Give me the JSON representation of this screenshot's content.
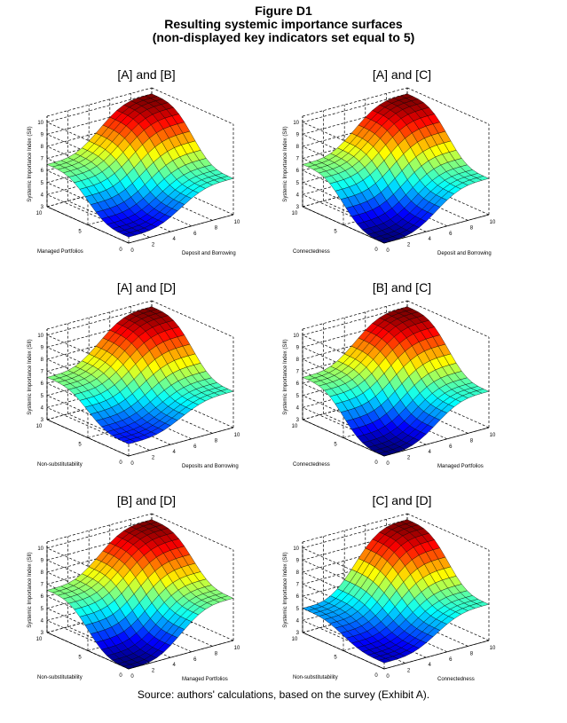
{
  "figure": {
    "title": "Figure D1",
    "subtitle_1": "Resulting systemic importance surfaces",
    "subtitle_2": "(non-displayed key indicators set equal to 5)",
    "source": "Source: authors' calculations, based on the survey (Exhibit A)."
  },
  "colormap": "jet",
  "chart_data": [
    {
      "type": "surface",
      "title": "[A] and [B]",
      "xlabel": "Deposit and Borrowing",
      "ylabel": "Managed Portfolios",
      "zlabel": "Systemic Importance Index (SII)",
      "xlim": [
        0,
        10
      ],
      "ylim": [
        0,
        10
      ],
      "zlim": [
        3,
        10
      ],
      "xticks": [
        "0",
        "2",
        "4",
        "6",
        "8",
        "10"
      ],
      "yticks": [
        "0",
        "5",
        "10"
      ],
      "zticks": [
        "3",
        "4",
        "5",
        "6",
        "7",
        "8",
        "9",
        "10"
      ],
      "corner_values": {
        "x0_y0": 3.5,
        "x10_y0": 6,
        "x0_y10": 6.5,
        "x10_y10": 10
      },
      "grid": true
    },
    {
      "type": "surface",
      "title": "[A] and [C]",
      "xlabel": "Deposit and Borrowing",
      "ylabel": "Connectedness",
      "zlabel": "Systemic Importance Index (SII)",
      "xlim": [
        0,
        10
      ],
      "ylim": [
        0,
        10
      ],
      "zlim": [
        3,
        10
      ],
      "xticks": [
        "0",
        "2",
        "4",
        "6",
        "8",
        "10"
      ],
      "yticks": [
        "0",
        "5",
        "10"
      ],
      "zticks": [
        "3",
        "4",
        "5",
        "6",
        "7",
        "8",
        "9",
        "10"
      ],
      "corner_values": {
        "x0_y0": 3,
        "x10_y0": 6,
        "x0_y10": 6.5,
        "x10_y10": 10
      },
      "grid": true
    },
    {
      "type": "surface",
      "title": "[A] and [D]",
      "xlabel": "Deposits and Borrowing",
      "ylabel": "Non-substitutability",
      "zlabel": "Systemic Importance Index (SII)",
      "xlim": [
        0,
        10
      ],
      "ylim": [
        0,
        10
      ],
      "zlim": [
        3,
        10
      ],
      "xticks": [
        "0",
        "2",
        "4",
        "6",
        "8",
        "10"
      ],
      "yticks": [
        "0",
        "5",
        "10"
      ],
      "zticks": [
        "3",
        "4",
        "5",
        "6",
        "7",
        "8",
        "9",
        "10"
      ],
      "corner_values": {
        "x0_y0": 4,
        "x10_y0": 6,
        "x0_y10": 6.5,
        "x10_y10": 10
      },
      "grid": true
    },
    {
      "type": "surface",
      "title": "[B] and [C]",
      "xlabel": "Managed Portfolios",
      "ylabel": "Connectedness",
      "zlabel": "Systemic Importance Index (SII)",
      "xlim": [
        0,
        10
      ],
      "ylim": [
        0,
        10
      ],
      "zlim": [
        3,
        10
      ],
      "xticks": [
        "0",
        "2",
        "4",
        "6",
        "8",
        "10"
      ],
      "yticks": [
        "0",
        "5",
        "10"
      ],
      "zticks": [
        "3",
        "4",
        "5",
        "6",
        "7",
        "8",
        "9",
        "10"
      ],
      "corner_values": {
        "x0_y0": 3,
        "x10_y0": 6,
        "x0_y10": 6.5,
        "x10_y10": 10
      },
      "grid": true
    },
    {
      "type": "surface",
      "title": "[B] and [D]",
      "xlabel": "Managed Portfolios",
      "ylabel": "Non-substitutability",
      "zlabel": "Systemic Importance Index (SII)",
      "xlim": [
        0,
        10
      ],
      "ylim": [
        0,
        10
      ],
      "zlim": [
        3,
        10
      ],
      "xticks": [
        "0",
        "2",
        "4",
        "6",
        "8",
        "10"
      ],
      "yticks": [
        "0",
        "5",
        "10"
      ],
      "zticks": [
        "3",
        "4",
        "5",
        "6",
        "7",
        "8",
        "9",
        "10"
      ],
      "corner_values": {
        "x0_y0": 3,
        "x10_y0": 6.5,
        "x0_y10": 6.5,
        "x10_y10": 10
      },
      "grid": true
    },
    {
      "type": "surface",
      "title": "[C] and [D]",
      "xlabel": "Connectedness",
      "ylabel": "Non-substitutability",
      "zlabel": "Systemic Importance Index (SII)",
      "xlim": [
        0,
        10
      ],
      "ylim": [
        0,
        10
      ],
      "zlim": [
        3,
        10
      ],
      "xticks": [
        "0",
        "2",
        "4",
        "6",
        "8",
        "10"
      ],
      "yticks": [
        "0",
        "5",
        "10"
      ],
      "zticks": [
        "3",
        "4",
        "5",
        "6",
        "7",
        "8",
        "9",
        "10"
      ],
      "corner_values": {
        "x0_y0": 3.5,
        "x10_y0": 6,
        "x0_y10": 5,
        "x10_y10": 10
      },
      "grid": true
    }
  ]
}
